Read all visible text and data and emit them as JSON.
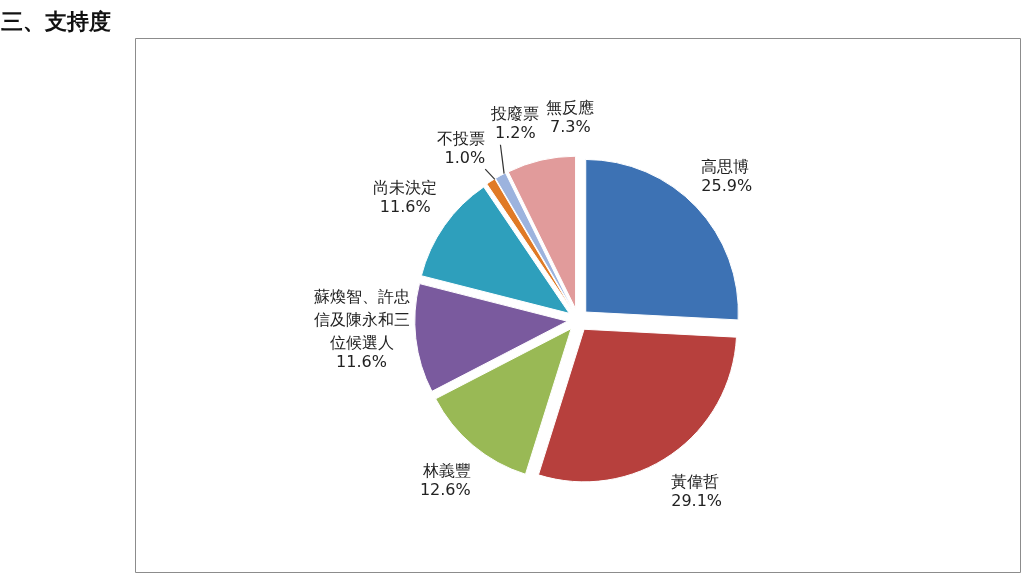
{
  "chart_data": {
    "type": "pie",
    "title": "三、支持度",
    "categories": [
      "高思博",
      "黃偉哲",
      "林義豐",
      "蘇煥智、許忠信及陳永和三位候選人",
      "尚未決定",
      "不投票",
      "投廢票",
      "無反應"
    ],
    "values": [
      25.9,
      29.1,
      12.6,
      11.6,
      11.6,
      1.0,
      1.2,
      7.3
    ],
    "colors": [
      "#3d72b4",
      "#b7403d",
      "#99b955",
      "#7a5a9e",
      "#2e9fbc",
      "#e07a26",
      "#9cb3de",
      "#e19b9b"
    ],
    "value_labels": [
      "25.9%",
      "29.1%",
      "12.6%",
      "11.6%",
      "11.6%",
      "1.0%",
      "1.2%",
      "7.3%"
    ]
  }
}
